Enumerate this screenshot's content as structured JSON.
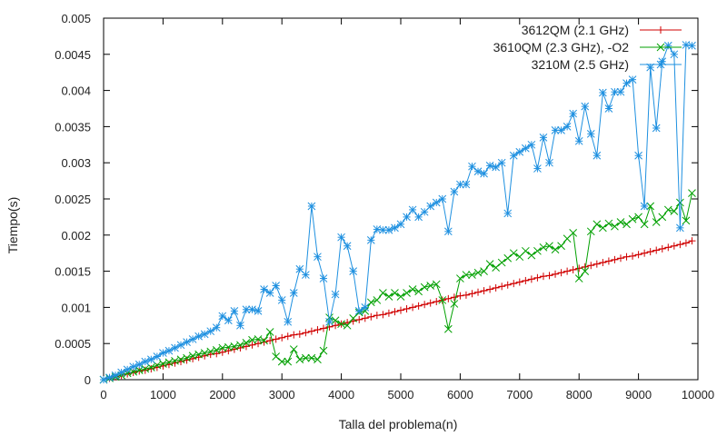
{
  "chart_data": {
    "type": "line",
    "xlabel": "Talla del problema(n)",
    "ylabel": "Tiempo(s)",
    "xlim": [
      0,
      10000
    ],
    "ylim": [
      0,
      0.005
    ],
    "xticks": [
      0,
      1000,
      2000,
      3000,
      4000,
      5000,
      6000,
      7000,
      8000,
      9000,
      10000
    ],
    "yticks": [
      0,
      0.0005,
      0.001,
      0.0015,
      0.002,
      0.0025,
      0.003,
      0.0035,
      0.004,
      0.0045,
      0.005
    ],
    "xtick_labels": [
      "0",
      "1000",
      "2000",
      "3000",
      "4000",
      "5000",
      "6000",
      "7000",
      "8000",
      "9000",
      "10000"
    ],
    "ytick_labels": [
      "0",
      "0.0005",
      "0.001",
      "0.0015",
      "0.002",
      "0.0025",
      "0.003",
      "0.0035",
      "0.004",
      "0.0045",
      "0.005"
    ],
    "grid": false,
    "legend_position": "top-right",
    "series": [
      {
        "name": "3612QM (2.1 GHz)",
        "color": "#d00000",
        "marker": "plus",
        "x": [
          0,
          100,
          200,
          300,
          400,
          500,
          600,
          700,
          800,
          900,
          1000,
          1100,
          1200,
          1300,
          1400,
          1500,
          1600,
          1700,
          1800,
          1900,
          2000,
          2100,
          2200,
          2300,
          2400,
          2500,
          2600,
          2700,
          2800,
          2900,
          3000,
          3100,
          3200,
          3300,
          3400,
          3500,
          3600,
          3700,
          3800,
          3900,
          4000,
          4100,
          4200,
          4300,
          4400,
          4500,
          4600,
          4700,
          4800,
          4900,
          5000,
          5100,
          5200,
          5300,
          5400,
          5500,
          5600,
          5700,
          5800,
          5900,
          6000,
          6100,
          6200,
          6300,
          6400,
          6500,
          6600,
          6700,
          6800,
          6900,
          7000,
          7100,
          7200,
          7300,
          7400,
          7500,
          7600,
          7700,
          7800,
          7900,
          8000,
          8100,
          8200,
          8300,
          8400,
          8500,
          8600,
          8700,
          8800,
          8900,
          9000,
          9100,
          9200,
          9300,
          9400,
          9500,
          9600,
          9700,
          9800,
          9900
        ],
        "y": [
          0,
          2e-05,
          4e-05,
          6e-05,
          8e-05,
          0.0001,
          0.00012,
          0.00013,
          0.00015,
          0.00017,
          0.00019,
          0.00021,
          0.00023,
          0.00025,
          0.00027,
          0.00029,
          0.00031,
          0.00033,
          0.00035,
          0.00036,
          0.00038,
          0.0004,
          0.00042,
          0.00044,
          0.00046,
          0.00048,
          0.0005,
          0.00052,
          0.00054,
          0.00056,
          0.00058,
          0.0006,
          0.00062,
          0.00063,
          0.00065,
          0.00067,
          0.00069,
          0.00071,
          0.00073,
          0.00075,
          0.00077,
          0.00079,
          0.00081,
          0.00083,
          0.00085,
          0.00087,
          0.00089,
          0.0009,
          0.00092,
          0.00094,
          0.00096,
          0.00098,
          0.001,
          0.00102,
          0.00104,
          0.00106,
          0.00108,
          0.0011,
          0.00112,
          0.00114,
          0.00116,
          0.00117,
          0.00119,
          0.00121,
          0.00123,
          0.00125,
          0.00127,
          0.00129,
          0.00131,
          0.00133,
          0.00135,
          0.00137,
          0.00139,
          0.00141,
          0.00143,
          0.00144,
          0.00146,
          0.00148,
          0.0015,
          0.00152,
          0.00154,
          0.00156,
          0.00158,
          0.0016,
          0.00162,
          0.00164,
          0.00166,
          0.00168,
          0.0017,
          0.00171,
          0.00173,
          0.00175,
          0.00177,
          0.00179,
          0.00181,
          0.00183,
          0.00185,
          0.00187,
          0.00189,
          0.00192
        ]
      },
      {
        "name": "3610QM (2.3 GHz), -O2",
        "color": "#00a000",
        "marker": "x",
        "x": [
          0,
          100,
          200,
          300,
          400,
          500,
          600,
          700,
          800,
          900,
          1000,
          1100,
          1200,
          1300,
          1400,
          1500,
          1600,
          1700,
          1800,
          1900,
          2000,
          2100,
          2200,
          2300,
          2400,
          2500,
          2600,
          2700,
          2800,
          2900,
          3000,
          3100,
          3200,
          3300,
          3400,
          3500,
          3600,
          3700,
          3800,
          3900,
          4000,
          4100,
          4200,
          4300,
          4400,
          4500,
          4600,
          4700,
          4800,
          4900,
          5000,
          5100,
          5200,
          5300,
          5400,
          5500,
          5600,
          5700,
          5800,
          5900,
          6000,
          6100,
          6200,
          6300,
          6400,
          6500,
          6600,
          6700,
          6800,
          6900,
          7000,
          7100,
          7200,
          7300,
          7400,
          7500,
          7600,
          7700,
          7800,
          7900,
          8000,
          8100,
          8200,
          8300,
          8400,
          8500,
          8600,
          8700,
          8800,
          8900,
          9000,
          9100,
          9200,
          9300,
          9400,
          9500,
          9600,
          9700,
          9800,
          9900
        ],
        "y": [
          0,
          2e-05,
          4e-05,
          6e-05,
          9e-05,
          0.00011,
          0.00013,
          0.00015,
          0.00017,
          0.0002,
          0.00022,
          0.00024,
          0.00026,
          0.00028,
          0.0003,
          0.00033,
          0.00035,
          0.00037,
          0.00039,
          0.00041,
          0.00044,
          0.00045,
          0.00046,
          0.00048,
          0.00051,
          0.00055,
          0.00056,
          0.00054,
          0.00066,
          0.00032,
          0.00025,
          0.00025,
          0.00042,
          0.00028,
          0.0003,
          0.0003,
          0.00028,
          0.0004,
          0.00086,
          0.00082,
          0.00077,
          0.00075,
          0.00085,
          0.00093,
          0.00095,
          0.00107,
          0.0011,
          0.0012,
          0.00115,
          0.0012,
          0.00115,
          0.0012,
          0.00125,
          0.00122,
          0.00128,
          0.0013,
          0.00132,
          0.0011,
          0.0007,
          0.00105,
          0.0014,
          0.00145,
          0.00145,
          0.00148,
          0.0015,
          0.0016,
          0.00155,
          0.00162,
          0.00168,
          0.00175,
          0.0017,
          0.00178,
          0.00172,
          0.00178,
          0.00183,
          0.00185,
          0.0018,
          0.00185,
          0.00195,
          0.00203,
          0.0014,
          0.0015,
          0.00205,
          0.00215,
          0.0021,
          0.00216,
          0.00212,
          0.00218,
          0.00215,
          0.00222,
          0.00225,
          0.00215,
          0.0024,
          0.00218,
          0.00225,
          0.00235,
          0.00233,
          0.00245,
          0.0022,
          0.00258
        ]
      },
      {
        "name": "3210M (2.5 GHz)",
        "color": "#1e90e0",
        "marker": "asterisk",
        "x": [
          0,
          100,
          200,
          300,
          400,
          500,
          600,
          700,
          800,
          900,
          1000,
          1100,
          1200,
          1300,
          1400,
          1500,
          1600,
          1700,
          1800,
          1900,
          2000,
          2100,
          2200,
          2300,
          2400,
          2500,
          2600,
          2700,
          2800,
          2900,
          3000,
          3100,
          3200,
          3300,
          3400,
          3500,
          3600,
          3700,
          3800,
          3900,
          4000,
          4100,
          4200,
          4300,
          4400,
          4500,
          4600,
          4700,
          4800,
          4900,
          5000,
          5100,
          5200,
          5300,
          5400,
          5500,
          5600,
          5700,
          5800,
          5900,
          6000,
          6100,
          6200,
          6300,
          6400,
          6500,
          6600,
          6700,
          6800,
          6900,
          7000,
          7100,
          7200,
          7300,
          7400,
          7500,
          7600,
          7700,
          7800,
          7900,
          8000,
          8100,
          8200,
          8300,
          8400,
          8500,
          8600,
          8700,
          8800,
          8900,
          9000,
          9100,
          9200,
          9300,
          9400,
          9500,
          9600,
          9700,
          9800,
          9900
        ],
        "y": [
          0,
          3e-05,
          6e-05,
          0.0001,
          0.00014,
          0.00018,
          0.00021,
          0.00025,
          0.00028,
          0.00032,
          0.00037,
          0.0004,
          0.00044,
          0.00048,
          0.00052,
          0.00056,
          0.0006,
          0.00063,
          0.00067,
          0.00072,
          0.00088,
          0.00082,
          0.00095,
          0.00075,
          0.00097,
          0.00097,
          0.00095,
          0.00125,
          0.0012,
          0.0013,
          0.0011,
          0.0008,
          0.0012,
          0.00153,
          0.00145,
          0.0024,
          0.0017,
          0.0014,
          0.0008,
          0.00118,
          0.00197,
          0.00185,
          0.0015,
          0.00095,
          0.001,
          0.00193,
          0.00208,
          0.00207,
          0.00207,
          0.0021,
          0.00215,
          0.00225,
          0.00235,
          0.00225,
          0.00232,
          0.0024,
          0.00245,
          0.0025,
          0.00205,
          0.0026,
          0.0027,
          0.0027,
          0.00295,
          0.00288,
          0.00285,
          0.00296,
          0.00294,
          0.003,
          0.0023,
          0.0031,
          0.00315,
          0.0032,
          0.00325,
          0.00292,
          0.00335,
          0.003,
          0.00345,
          0.00345,
          0.0035,
          0.00368,
          0.0033,
          0.00378,
          0.0034,
          0.0031,
          0.00397,
          0.00375,
          0.00398,
          0.00398,
          0.0041,
          0.00415,
          0.0031,
          0.0024,
          0.00432,
          0.00348,
          0.0044,
          0.00462,
          0.0045,
          0.0021,
          0.00463,
          0.00462
        ]
      }
    ]
  }
}
